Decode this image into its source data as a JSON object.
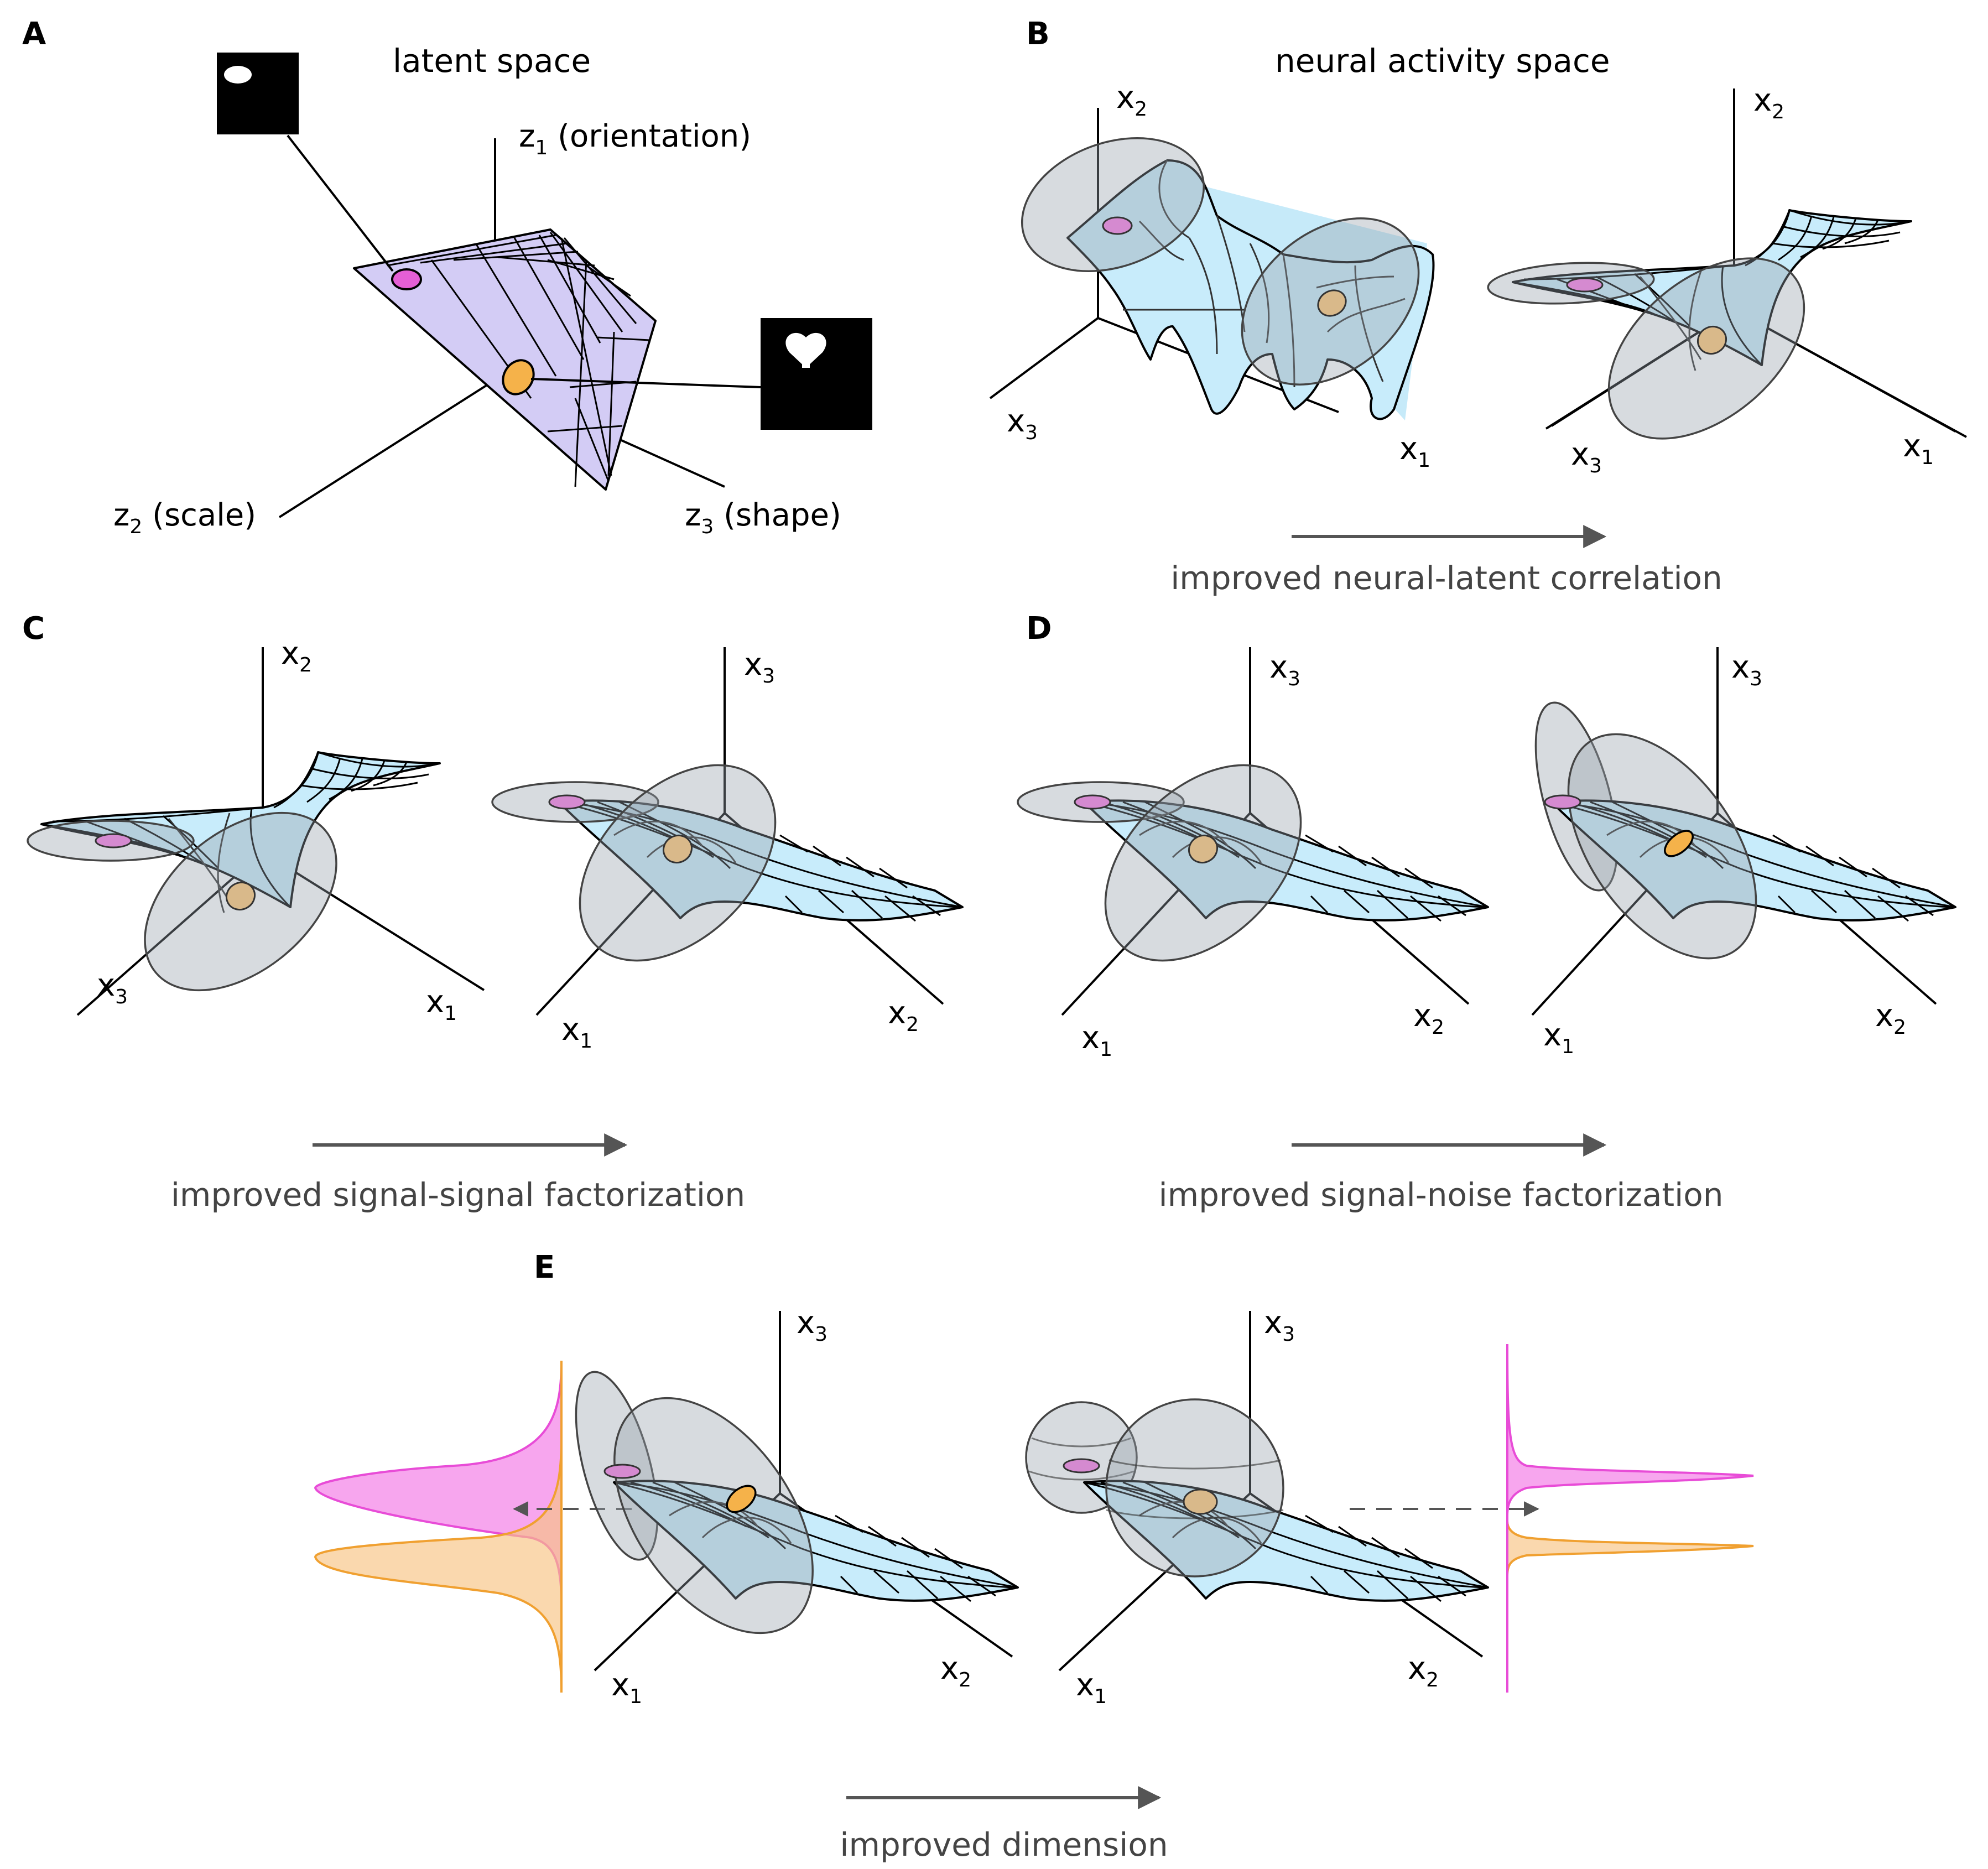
{
  "panels": {
    "a": {
      "letter": "A",
      "title": "latent space",
      "axes": {
        "z1": {
          "base": "z",
          "sub": "1",
          "rest": " (orientation)"
        },
        "z2": {
          "base": "z",
          "sub": "2",
          "rest": " (scale)"
        },
        "z3": {
          "base": "z",
          "sub": "3",
          "rest": " (shape)"
        }
      }
    },
    "b": {
      "letter": "B",
      "title": "neural activity space",
      "caption": "improved neural-latent correlation"
    },
    "c": {
      "letter": "C",
      "caption": "improved signal-signal factorization"
    },
    "d": {
      "letter": "D",
      "caption": "improved signal-noise factorization"
    },
    "e": {
      "letter": "E",
      "caption": "improved dimension"
    }
  },
  "axis_labels": {
    "base": "x",
    "s1": "1",
    "s2": "2",
    "s3": "3"
  },
  "colors": {
    "latent_plane": "#d3ccf5",
    "manifold": "#c8ecfb",
    "noise": "#9aa3ab",
    "point_pink": "#e55fd6",
    "point_pink_muted": "#d58ad0",
    "point_orange": "#f5b24a",
    "point_orange_muted": "#d9b98a",
    "density_pink": "#f7a6ee",
    "density_orange": "#fad7a6",
    "arrow": "#555555"
  },
  "icons": {
    "ellipse_image": "white-ellipse-image-icon",
    "heart_image": "white-heart-image-icon"
  }
}
